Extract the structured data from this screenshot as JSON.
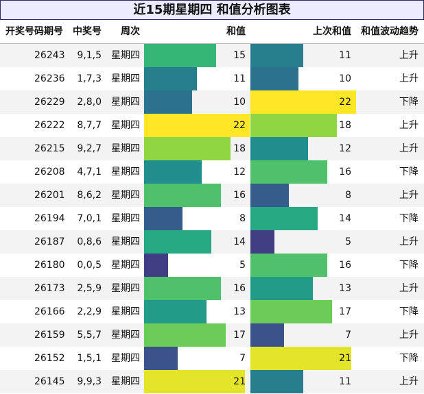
{
  "title": "近15期星期四 和值分析图表",
  "headers": {
    "issue": "开奖号码期号",
    "numbers": "中奖号",
    "weekday": "周次",
    "sum": "和值",
    "prev_sum": "上次和值",
    "trend": "和值波动趋势"
  },
  "chart_data": {
    "type": "table",
    "title": "近15期星期四 和值分析图表",
    "columns": [
      "开奖号码期号",
      "中奖号",
      "周次",
      "和值",
      "上次和值",
      "和值波动趋势"
    ],
    "rows": [
      {
        "issue": "26243",
        "numbers": "9,1,5",
        "weekday": "星期四",
        "sum": 15,
        "prev_sum": 11,
        "trend": "上升"
      },
      {
        "issue": "26236",
        "numbers": "1,7,3",
        "weekday": "星期四",
        "sum": 11,
        "prev_sum": 10,
        "trend": "上升"
      },
      {
        "issue": "26229",
        "numbers": "2,8,0",
        "weekday": "星期四",
        "sum": 10,
        "prev_sum": 22,
        "trend": "下降"
      },
      {
        "issue": "26222",
        "numbers": "8,7,7",
        "weekday": "星期四",
        "sum": 22,
        "prev_sum": 18,
        "trend": "上升"
      },
      {
        "issue": "26215",
        "numbers": "9,2,7",
        "weekday": "星期四",
        "sum": 18,
        "prev_sum": 12,
        "trend": "上升"
      },
      {
        "issue": "26208",
        "numbers": "4,7,1",
        "weekday": "星期四",
        "sum": 12,
        "prev_sum": 16,
        "trend": "下降"
      },
      {
        "issue": "26201",
        "numbers": "8,6,2",
        "weekday": "星期四",
        "sum": 16,
        "prev_sum": 8,
        "trend": "上升"
      },
      {
        "issue": "26194",
        "numbers": "7,0,1",
        "weekday": "星期四",
        "sum": 8,
        "prev_sum": 14,
        "trend": "下降"
      },
      {
        "issue": "26187",
        "numbers": "0,8,6",
        "weekday": "星期四",
        "sum": 14,
        "prev_sum": 5,
        "trend": "上升"
      },
      {
        "issue": "26180",
        "numbers": "0,0,5",
        "weekday": "星期四",
        "sum": 5,
        "prev_sum": 16,
        "trend": "下降"
      },
      {
        "issue": "26173",
        "numbers": "2,5,9",
        "weekday": "星期四",
        "sum": 16,
        "prev_sum": 13,
        "trend": "上升"
      },
      {
        "issue": "26166",
        "numbers": "2,2,9",
        "weekday": "星期四",
        "sum": 13,
        "prev_sum": 17,
        "trend": "下降"
      },
      {
        "issue": "26159",
        "numbers": "5,5,7",
        "weekday": "星期四",
        "sum": 17,
        "prev_sum": 7,
        "trend": "上升"
      },
      {
        "issue": "26152",
        "numbers": "1,5,1",
        "weekday": "星期四",
        "sum": 7,
        "prev_sum": 21,
        "trend": "下降"
      },
      {
        "issue": "26145",
        "numbers": "9,9,3",
        "weekday": "星期四",
        "sum": 21,
        "prev_sum": 11,
        "trend": "上升"
      }
    ],
    "bar_scale_max": 22,
    "colorscale": "viridis"
  }
}
